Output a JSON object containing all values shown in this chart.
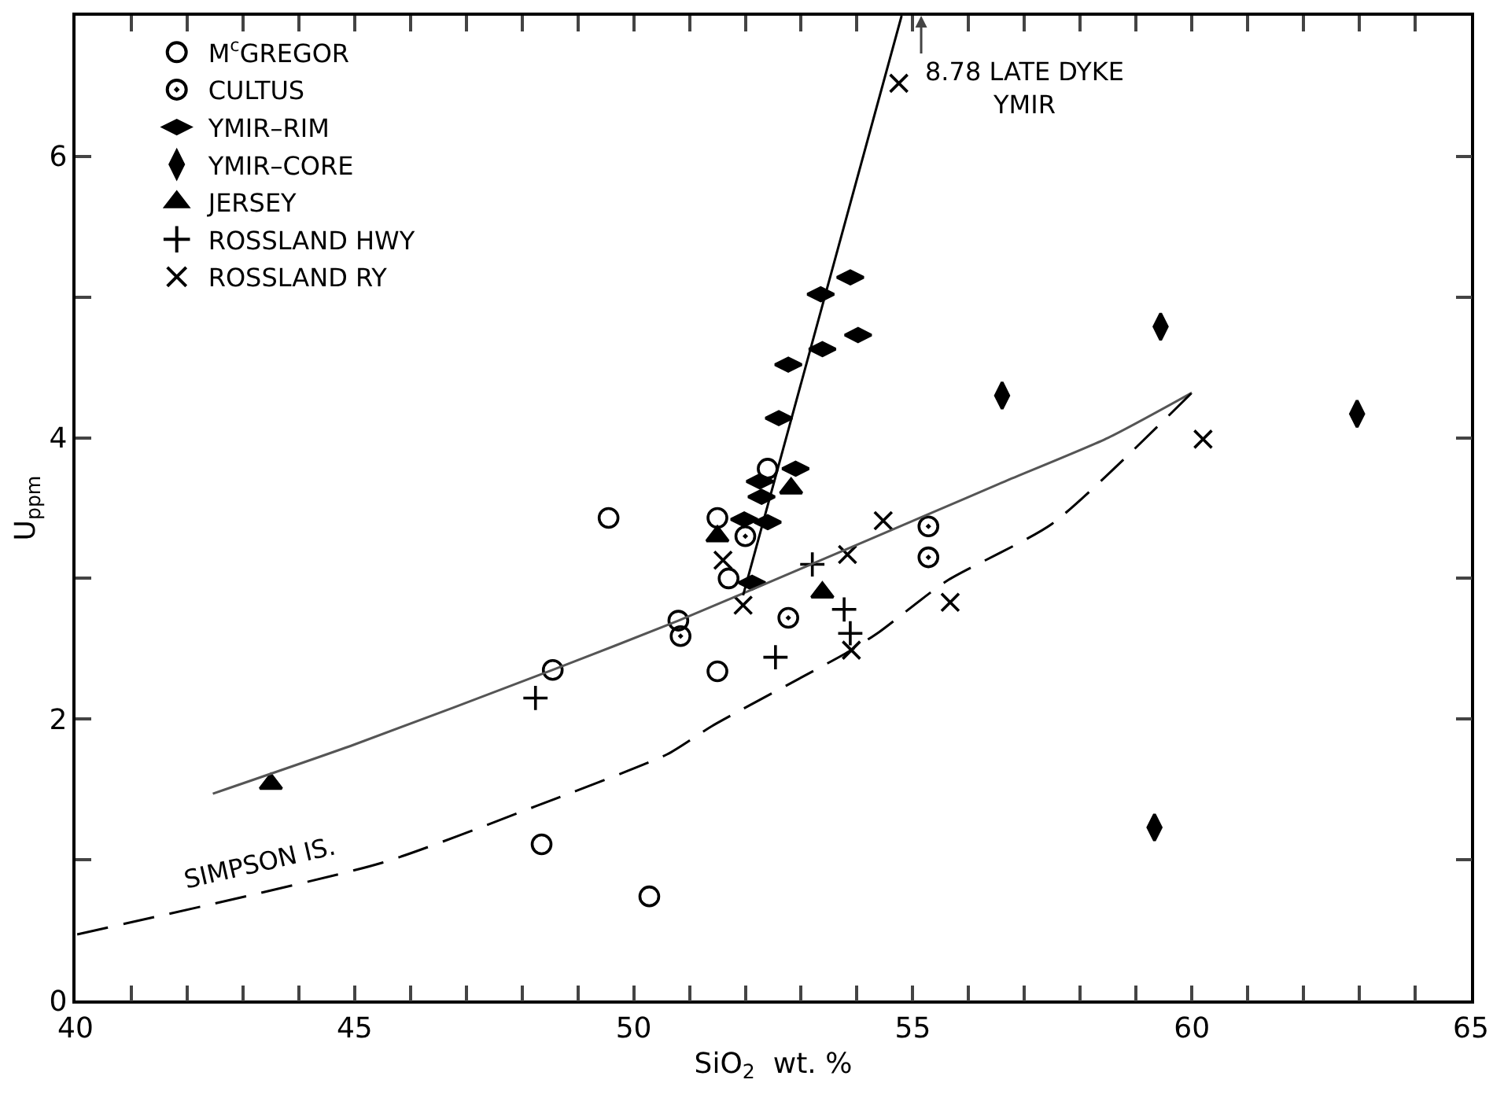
{
  "chart_data": {
    "type": "scatter",
    "xlabel": "SiO$_{2}$  wt. %",
    "ylabel": "U$_{ppm}$",
    "xlim": [
      40,
      65
    ],
    "ylim": [
      0,
      7
    ],
    "xticks": [
      40,
      {
        "value": 41,
        "label": null
      },
      {
        "value": 42,
        "label": null
      },
      {
        "value": 43,
        "label": null
      },
      {
        "value": 44,
        "label": null
      },
      45,
      {
        "value": 46,
        "label": null
      },
      {
        "value": 47,
        "label": null
      },
      {
        "value": 48,
        "label": null
      },
      {
        "value": 49,
        "label": null
      },
      50,
      {
        "value": 51,
        "label": null
      },
      {
        "value": 52,
        "label": null
      },
      {
        "value": 53,
        "label": null
      },
      {
        "value": 54,
        "label": null
      },
      55,
      {
        "value": 56,
        "label": null
      },
      {
        "value": 57,
        "label": null
      },
      {
        "value": 58,
        "label": null
      },
      {
        "value": 59,
        "label": null
      },
      60,
      {
        "value": 61,
        "label": null
      },
      {
        "value": 62,
        "label": null
      },
      {
        "value": 63,
        "label": null
      },
      {
        "value": 64,
        "label": null
      },
      65
    ],
    "yticks": [
      0,
      {
        "value": 1,
        "label": null
      },
      2,
      {
        "value": 3,
        "label": null
      },
      4,
      {
        "value": 5,
        "label": null
      },
      6
    ],
    "grid": false,
    "legend": "top left",
    "series": [
      {
        "name": "M$^{c}$GREGOR",
        "color": "#000000",
        "marker": "circle-open",
        "x": [
          49.55,
          48.55,
          48.35,
          50.28,
          50.8,
          51.5,
          51.5,
          51.7,
          52.4
        ],
        "values": [
          3.43,
          2.35,
          1.11,
          0.74,
          2.7,
          2.34,
          3.43,
          3.0,
          3.78
        ]
      },
      {
        "name": "CULTUS",
        "color": "#000000",
        "marker": "circle-open-dot",
        "x": [
          52.0,
          50.84,
          52.77,
          55.28,
          55.28
        ],
        "values": [
          3.3,
          2.59,
          2.72,
          3.37,
          3.15
        ]
      },
      {
        "name": "YMIR–RIM",
        "color": "#000000",
        "marker": "diamond-wide",
        "x": [
          53.88,
          53.35,
          54.02,
          53.38,
          52.77,
          52.6,
          52.9,
          52.26,
          52.29,
          51.98,
          52.4,
          52.12
        ],
        "values": [
          5.14,
          5.02,
          4.73,
          4.63,
          4.52,
          4.14,
          3.78,
          3.69,
          3.58,
          3.42,
          3.4,
          2.97
        ]
      },
      {
        "name": "YMIR–CORE",
        "color": "#000000",
        "marker": "diamond-tall",
        "x": [
          56.6,
          59.44,
          62.96,
          59.33
        ],
        "values": [
          4.3,
          4.79,
          4.17,
          1.23
        ]
      },
      {
        "name": "JERSEY",
        "color": "#000000",
        "marker": "triangle",
        "x": [
          43.5,
          52.82,
          51.5,
          53.38
        ],
        "values": [
          1.54,
          3.64,
          3.3,
          2.9
        ]
      },
      {
        "name": "ROSSLAND HWY",
        "color": "#000000",
        "marker": "cross",
        "x": [
          48.24,
          53.2,
          53.77,
          53.88,
          52.54
        ],
        "values": [
          2.15,
          3.1,
          2.78,
          2.61,
          2.44
        ]
      },
      {
        "name": "ROSSLAND RY",
        "color": "#000000",
        "marker": "x",
        "x": [
          54.75,
          54.47,
          53.83,
          51.6,
          51.96,
          53.9,
          55.67,
          60.2
        ],
        "values": [
          6.52,
          3.41,
          3.17,
          3.13,
          2.81,
          2.49,
          2.83,
          3.99
        ]
      },
      {
        "type": "line",
        "color": "#555555",
        "line_style": "solid",
        "x": [
          42.46,
          45,
          48.55,
          50.8,
          53,
          55.3,
          56.65,
          58.5,
          60
        ],
        "values": [
          1.47,
          1.82,
          2.35,
          2.7,
          3.07,
          3.46,
          3.69,
          4.0,
          4.32
        ]
      },
      {
        "type": "line",
        "color": "#000000",
        "line_style": "dashed",
        "x": [
          40.03,
          45.5,
          48.24,
          50.6,
          51.4,
          53.85,
          54.4,
          55.6,
          57.5,
          60
        ],
        "values": [
          0.47,
          0.98,
          1.38,
          1.75,
          1.95,
          2.48,
          2.62,
          2.98,
          3.39,
          4.32
        ]
      },
      {
        "type": "line",
        "color": "#000000",
        "line_style": "solid",
        "x": [
          51.96,
          54.8
        ],
        "values": [
          2.88,
          7.0
        ]
      }
    ],
    "annotations": [
      "8.78 LATE DYKE\nYMIR",
      "SIMPSON IS."
    ]
  }
}
